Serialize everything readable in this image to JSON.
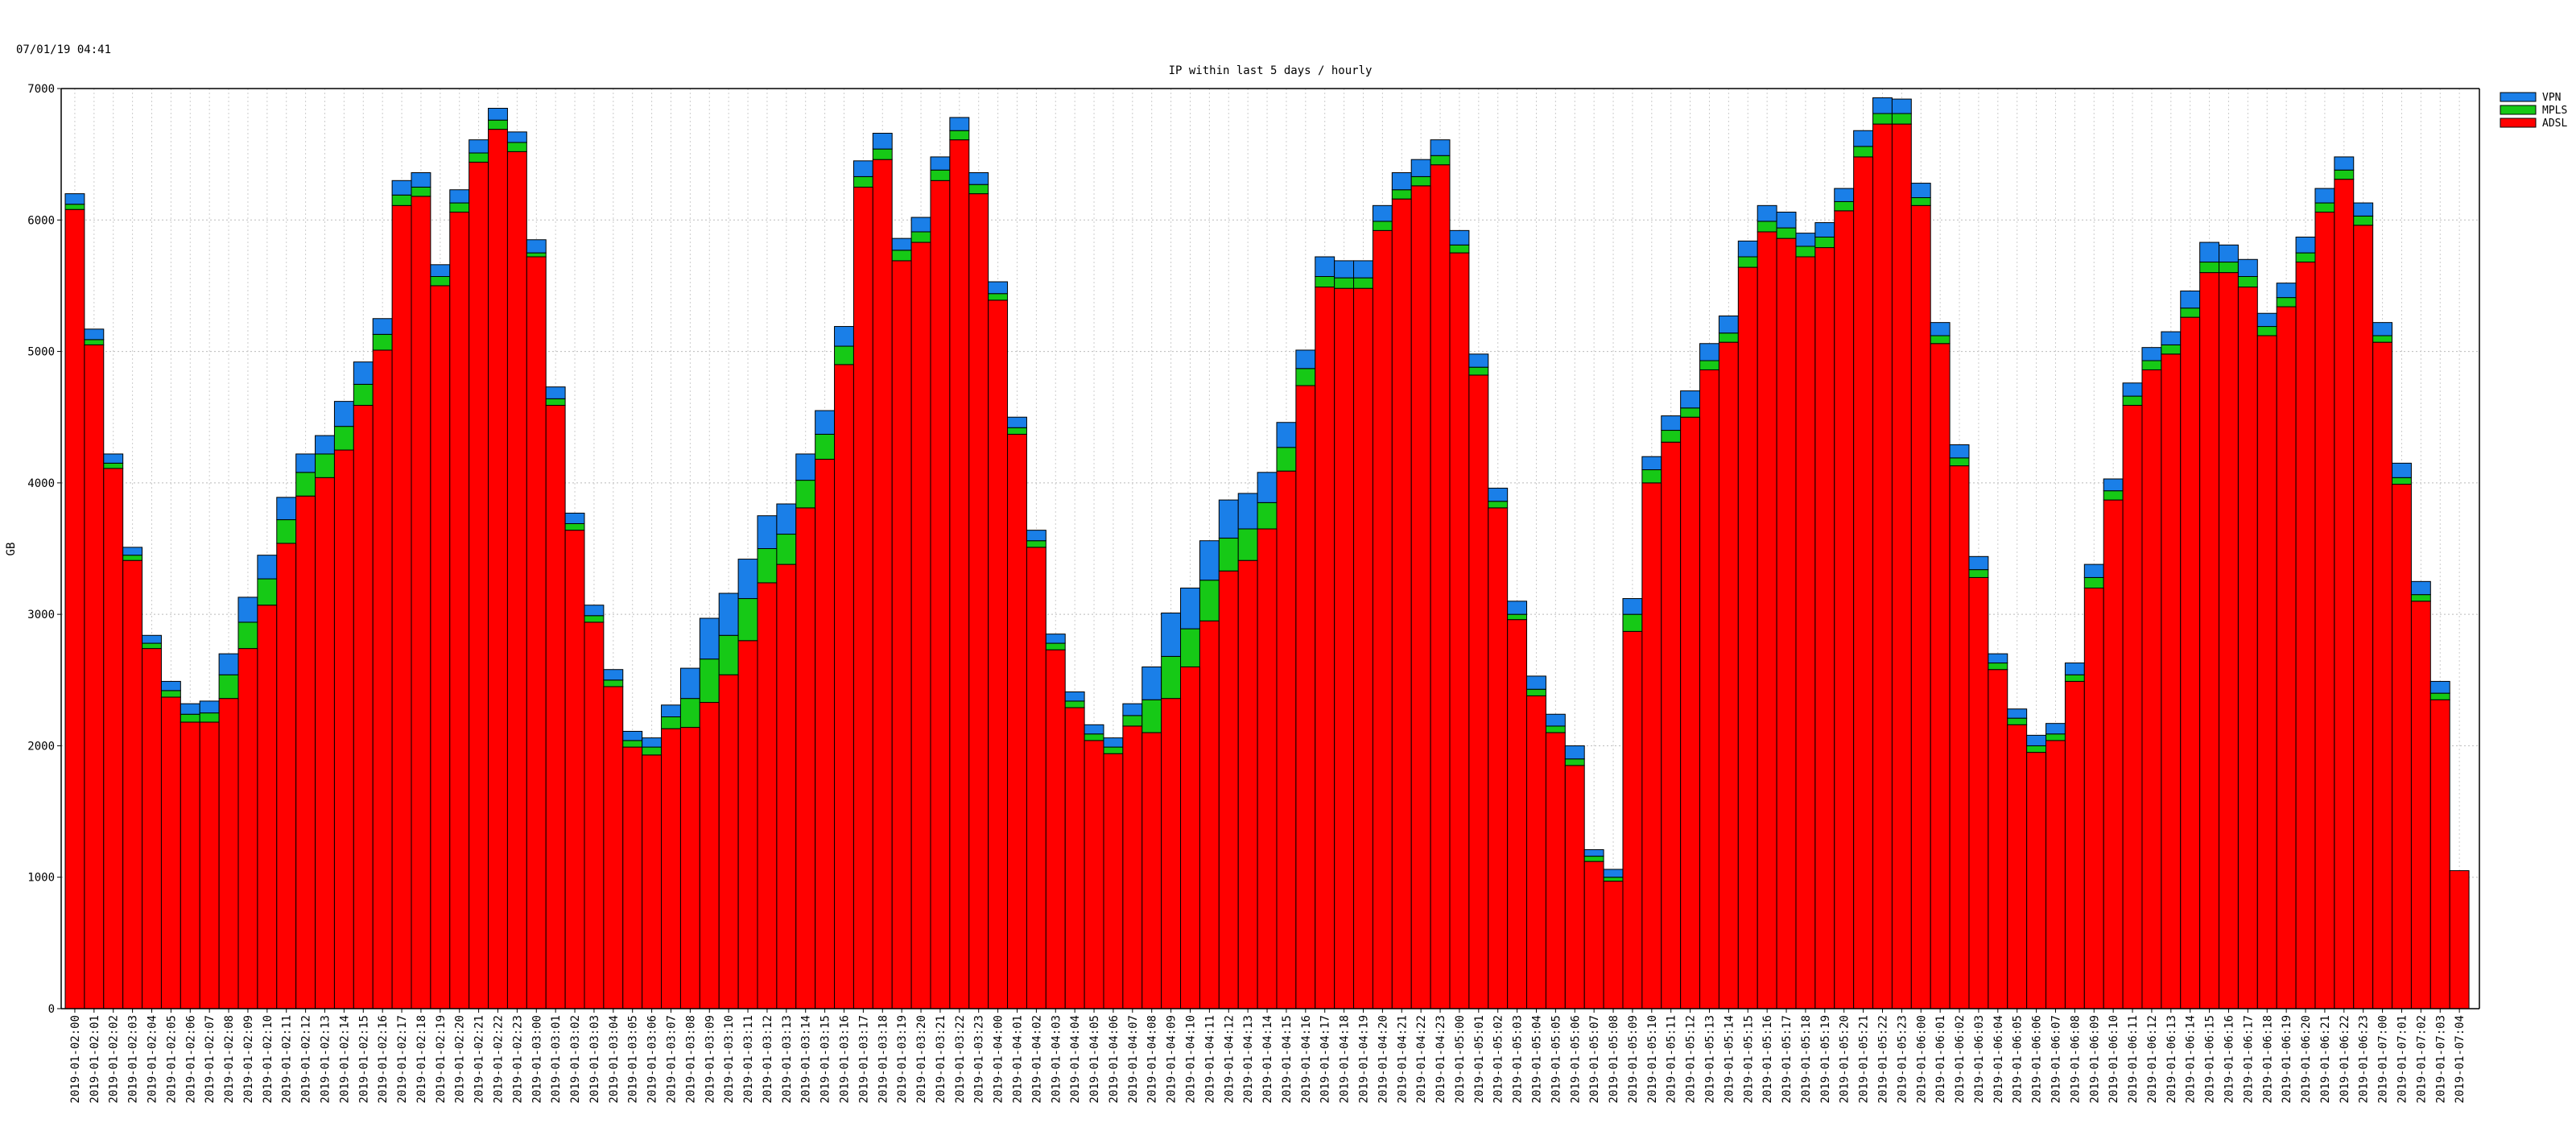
{
  "timestamp": "07/01/19 04:41",
  "chart_data": {
    "type": "bar",
    "stacked": true,
    "title": "IP within last 5  days / hourly",
    "ylabel": "GB",
    "xlabel": "",
    "ylim": [
      0,
      7000
    ],
    "yticks": [
      0,
      1000,
      2000,
      3000,
      4000,
      5000,
      6000,
      7000
    ],
    "grid": true,
    "legend_position": "top-right",
    "colors": {
      "VPN": "#1a7fe8",
      "MPLS": "#16c916",
      "ADSL": "#ff0000"
    },
    "legend": [
      "VPN",
      "MPLS",
      "ADSL"
    ],
    "categories": [
      "2019-01-02:00",
      "2019-01-02:01",
      "2019-01-02:02",
      "2019-01-02:03",
      "2019-01-02:04",
      "2019-01-02:05",
      "2019-01-02:06",
      "2019-01-02:07",
      "2019-01-02:08",
      "2019-01-02:09",
      "2019-01-02:10",
      "2019-01-02:11",
      "2019-01-02:12",
      "2019-01-02:13",
      "2019-01-02:14",
      "2019-01-02:15",
      "2019-01-02:16",
      "2019-01-02:17",
      "2019-01-02:18",
      "2019-01-02:19",
      "2019-01-02:20",
      "2019-01-02:21",
      "2019-01-02:22",
      "2019-01-02:23",
      "2019-01-03:00",
      "2019-01-03:01",
      "2019-01-03:02",
      "2019-01-03:03",
      "2019-01-03:04",
      "2019-01-03:05",
      "2019-01-03:06",
      "2019-01-03:07",
      "2019-01-03:08",
      "2019-01-03:09",
      "2019-01-03:10",
      "2019-01-03:11",
      "2019-01-03:12",
      "2019-01-03:13",
      "2019-01-03:14",
      "2019-01-03:15",
      "2019-01-03:16",
      "2019-01-03:17",
      "2019-01-03:18",
      "2019-01-03:19",
      "2019-01-03:20",
      "2019-01-03:21",
      "2019-01-03:22",
      "2019-01-03:23",
      "2019-01-04:00",
      "2019-01-04:01",
      "2019-01-04:02",
      "2019-01-04:03",
      "2019-01-04:04",
      "2019-01-04:05",
      "2019-01-04:06",
      "2019-01-04:07",
      "2019-01-04:08",
      "2019-01-04:09",
      "2019-01-04:10",
      "2019-01-04:11",
      "2019-01-04:12",
      "2019-01-04:13",
      "2019-01-04:14",
      "2019-01-04:15",
      "2019-01-04:16",
      "2019-01-04:17",
      "2019-01-04:18",
      "2019-01-04:19",
      "2019-01-04:20",
      "2019-01-04:21",
      "2019-01-04:22",
      "2019-01-04:23",
      "2019-01-05:00",
      "2019-01-05:01",
      "2019-01-05:02",
      "2019-01-05:03",
      "2019-01-05:04",
      "2019-01-05:05",
      "2019-01-05:06",
      "2019-01-05:07",
      "2019-01-05:08",
      "2019-01-05:09",
      "2019-01-05:10",
      "2019-01-05:11",
      "2019-01-05:12",
      "2019-01-05:13",
      "2019-01-05:14",
      "2019-01-05:15",
      "2019-01-05:16",
      "2019-01-05:17",
      "2019-01-05:18",
      "2019-01-05:19",
      "2019-01-05:20",
      "2019-01-05:21",
      "2019-01-05:22",
      "2019-01-05:23",
      "2019-01-06:00",
      "2019-01-06:01",
      "2019-01-06:02",
      "2019-01-06:03",
      "2019-01-06:04",
      "2019-01-06:05",
      "2019-01-06:06",
      "2019-01-06:07",
      "2019-01-06:08",
      "2019-01-06:09",
      "2019-01-06:10",
      "2019-01-06:11",
      "2019-01-06:12",
      "2019-01-06:13",
      "2019-01-06:14",
      "2019-01-06:15",
      "2019-01-06:16",
      "2019-01-06:17",
      "2019-01-06:18",
      "2019-01-06:19",
      "2019-01-06:20",
      "2019-01-06:21",
      "2019-01-06:22",
      "2019-01-06:23",
      "2019-01-07:00",
      "2019-01-07:01",
      "2019-01-07:02",
      "2019-01-07:03",
      "2019-01-07:04"
    ],
    "series": [
      {
        "name": "ADSL",
        "values": [
          6080,
          5050,
          4110,
          3410,
          2740,
          2370,
          2180,
          2180,
          2360,
          2740,
          3070,
          3540,
          3900,
          4040,
          4250,
          4590,
          5010,
          6110,
          6180,
          5500,
          6060,
          6440,
          6690,
          6520,
          5720,
          4590,
          3640,
          2940,
          2450,
          1990,
          1930,
          2130,
          2140,
          2330,
          2540,
          2800,
          3240,
          3380,
          3810,
          4180,
          4900,
          6250,
          6460,
          5690,
          5830,
          6300,
          6610,
          6200,
          5390,
          4370,
          3510,
          2730,
          2290,
          2040,
          1940,
          2150,
          2100,
          2360,
          2600,
          2950,
          3330,
          3410,
          3650,
          4090,
          4740,
          5490,
          5480,
          5480,
          5920,
          6160,
          6260,
          6420,
          5750,
          4820,
          3810,
          2960,
          2380,
          2100,
          1850,
          1120,
          970,
          2870,
          4000,
          4310,
          4500,
          4860,
          5070,
          5640,
          5910,
          5860,
          5720,
          5790,
          6070,
          6480,
          6730,
          6730,
          6110,
          5060,
          4130,
          3280,
          2580,
          2160,
          1950,
          2040,
          2490,
          3200,
          3870,
          4590,
          4860,
          4980,
          5260,
          5600,
          5600,
          5490,
          5120,
          5340,
          5680,
          6060,
          6310,
          5960,
          5070,
          3990,
          3100,
          2350,
          1050
        ]
      },
      {
        "name": "MPLS",
        "values": [
          40,
          40,
          40,
          40,
          40,
          50,
          60,
          70,
          180,
          200,
          200,
          180,
          180,
          180,
          180,
          160,
          120,
          80,
          70,
          70,
          70,
          70,
          70,
          70,
          30,
          50,
          50,
          50,
          50,
          50,
          60,
          90,
          220,
          330,
          300,
          320,
          260,
          230,
          210,
          190,
          140,
          80,
          80,
          80,
          80,
          80,
          70,
          70,
          50,
          50,
          50,
          50,
          50,
          50,
          50,
          80,
          250,
          320,
          290,
          310,
          250,
          240,
          200,
          180,
          130,
          80,
          80,
          80,
          70,
          70,
          70,
          70,
          60,
          60,
          50,
          40,
          50,
          50,
          50,
          40,
          30,
          130,
          100,
          90,
          70,
          70,
          70,
          80,
          80,
          80,
          80,
          80,
          70,
          80,
          80,
          80,
          60,
          60,
          60,
          60,
          50,
          50,
          50,
          50,
          50,
          80,
          70,
          70,
          70,
          70,
          70,
          80,
          80,
          80,
          70,
          70,
          70,
          70,
          70,
          70,
          50,
          50,
          50,
          50,
          0
        ]
      },
      {
        "name": "VPN",
        "values": [
          80,
          80,
          70,
          60,
          60,
          70,
          80,
          90,
          160,
          190,
          180,
          170,
          140,
          140,
          190,
          170,
          120,
          110,
          110,
          90,
          100,
          100,
          90,
          80,
          100,
          90,
          80,
          80,
          80,
          70,
          70,
          90,
          230,
          310,
          320,
          300,
          250,
          230,
          200,
          180,
          150,
          120,
          120,
          90,
          110,
          100,
          100,
          90,
          90,
          80,
          80,
          70,
          70,
          70,
          70,
          90,
          250,
          330,
          310,
          300,
          290,
          270,
          230,
          190,
          140,
          150,
          130,
          130,
          120,
          130,
          130,
          120,
          110,
          100,
          100,
          100,
          100,
          90,
          100,
          50,
          60,
          120,
          100,
          110,
          130,
          130,
          130,
          120,
          120,
          120,
          100,
          110,
          100,
          120,
          120,
          110,
          110,
          100,
          100,
          100,
          70,
          70,
          80,
          80,
          90,
          100,
          90,
          100,
          100,
          100,
          130,
          150,
          130,
          130,
          100,
          110,
          120,
          110,
          100,
          100,
          100,
          110,
          100,
          90,
          0
        ]
      }
    ]
  }
}
